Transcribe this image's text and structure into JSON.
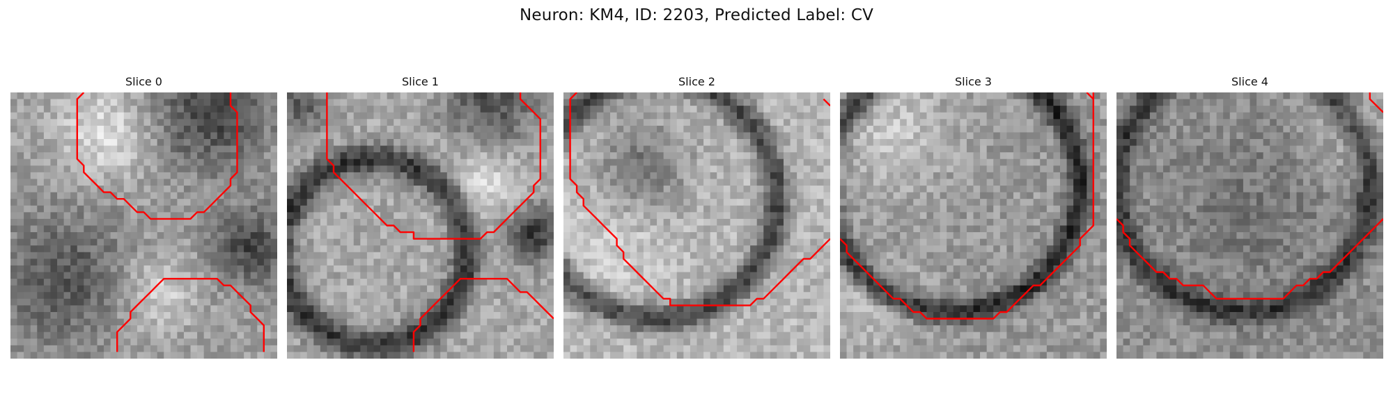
{
  "figure": {
    "title": "Neuron: KM4, ID: 2203, Predicted Label: CV"
  },
  "colors": {
    "background": "#ffffff",
    "contour": "#ff0000",
    "image_cmap": "grayscale"
  },
  "panels": [
    {
      "title": "Slice 0",
      "image_tone": "mottled gray texture, darker band across the middle, dark region at top-right",
      "contours": [
        [
          [
            11,
            0
          ],
          [
            10,
            1
          ],
          [
            10,
            10
          ],
          [
            11,
            11
          ],
          [
            11,
            12
          ],
          [
            12,
            13
          ],
          [
            13,
            14
          ],
          [
            14,
            15
          ],
          [
            15,
            15
          ],
          [
            16,
            16
          ],
          [
            17,
            16
          ],
          [
            18,
            17
          ],
          [
            19,
            18
          ],
          [
            20,
            18
          ],
          [
            21,
            19
          ],
          [
            22,
            19
          ],
          [
            23,
            19
          ],
          [
            24,
            19
          ],
          [
            25,
            19
          ],
          [
            26,
            19
          ],
          [
            27,
            19
          ],
          [
            28,
            18
          ],
          [
            29,
            18
          ],
          [
            30,
            17
          ],
          [
            31,
            16
          ],
          [
            32,
            15
          ],
          [
            33,
            14
          ],
          [
            33,
            13
          ],
          [
            34,
            12
          ],
          [
            34,
            3
          ],
          [
            33,
            2
          ],
          [
            33,
            0
          ]
        ],
        [
          [
            16,
            39
          ],
          [
            16,
            36
          ],
          [
            17,
            35
          ],
          [
            18,
            34
          ],
          [
            18,
            33
          ],
          [
            19,
            32
          ],
          [
            20,
            31
          ],
          [
            21,
            30
          ],
          [
            22,
            29
          ],
          [
            23,
            28
          ],
          [
            24,
            28
          ],
          [
            30,
            28
          ],
          [
            31,
            28
          ],
          [
            32,
            29
          ],
          [
            33,
            29
          ],
          [
            34,
            30
          ],
          [
            35,
            31
          ],
          [
            36,
            32
          ],
          [
            36,
            33
          ],
          [
            37,
            34
          ],
          [
            38,
            35
          ],
          [
            38,
            39
          ]
        ]
      ]
    },
    {
      "title": "Slice 1",
      "image_tone": "bright rounded cell body with dark membrane ring, dark blob at right edge",
      "contours": [
        [
          [
            6,
            0
          ],
          [
            6,
            10
          ],
          [
            7,
            11
          ],
          [
            7,
            12
          ],
          [
            8,
            13
          ],
          [
            9,
            14
          ],
          [
            10,
            15
          ],
          [
            11,
            16
          ],
          [
            12,
            17
          ],
          [
            13,
            18
          ],
          [
            14,
            19
          ],
          [
            15,
            20
          ],
          [
            16,
            20
          ],
          [
            17,
            21
          ],
          [
            18,
            21
          ],
          [
            19,
            21
          ],
          [
            19,
            22
          ],
          [
            20,
            22
          ],
          [
            21,
            22
          ],
          [
            22,
            22
          ],
          [
            23,
            22
          ],
          [
            24,
            22
          ],
          [
            25,
            22
          ],
          [
            26,
            22
          ],
          [
            27,
            22
          ],
          [
            28,
            22
          ],
          [
            29,
            22
          ],
          [
            30,
            21
          ],
          [
            31,
            21
          ],
          [
            32,
            20
          ],
          [
            33,
            19
          ],
          [
            34,
            18
          ],
          [
            35,
            17
          ],
          [
            36,
            16
          ],
          [
            37,
            15
          ],
          [
            37,
            14
          ],
          [
            38,
            13
          ],
          [
            38,
            4
          ],
          [
            37,
            3
          ],
          [
            36,
            2
          ],
          [
            35,
            1
          ],
          [
            35,
            0
          ]
        ],
        [
          [
            19,
            39
          ],
          [
            19,
            36
          ],
          [
            20,
            35
          ],
          [
            20,
            34
          ],
          [
            21,
            33
          ],
          [
            22,
            32
          ],
          [
            23,
            31
          ],
          [
            24,
            30
          ],
          [
            25,
            29
          ],
          [
            26,
            28
          ],
          [
            27,
            28
          ],
          [
            32,
            28
          ],
          [
            33,
            28
          ],
          [
            34,
            29
          ],
          [
            35,
            30
          ],
          [
            36,
            30
          ],
          [
            37,
            31
          ],
          [
            38,
            32
          ],
          [
            39,
            33
          ],
          [
            40,
            34
          ]
        ]
      ]
    },
    {
      "title": "Slice 2",
      "image_tone": "large pale cell body outlined by a dark membrane arc",
      "contours": [
        [
          [
            2,
            0
          ],
          [
            1,
            1
          ],
          [
            1,
            13
          ],
          [
            2,
            14
          ],
          [
            2,
            15
          ],
          [
            3,
            16
          ],
          [
            3,
            17
          ],
          [
            4,
            18
          ],
          [
            5,
            19
          ],
          [
            6,
            20
          ],
          [
            7,
            21
          ],
          [
            8,
            22
          ],
          [
            8,
            23
          ],
          [
            9,
            24
          ],
          [
            9,
            25
          ],
          [
            10,
            26
          ],
          [
            11,
            27
          ],
          [
            12,
            28
          ],
          [
            13,
            29
          ],
          [
            14,
            30
          ],
          [
            15,
            31
          ],
          [
            16,
            31
          ],
          [
            16,
            32
          ],
          [
            28,
            32
          ],
          [
            29,
            31
          ],
          [
            30,
            31
          ],
          [
            31,
            30
          ],
          [
            32,
            29
          ],
          [
            33,
            28
          ],
          [
            34,
            27
          ],
          [
            35,
            26
          ],
          [
            36,
            25
          ],
          [
            37,
            25
          ],
          [
            38,
            24
          ],
          [
            39,
            23
          ],
          [
            40,
            22
          ]
        ],
        [
          [
            39,
            1
          ],
          [
            40,
            2
          ]
        ]
      ]
    },
    {
      "title": "Slice 3",
      "image_tone": "textured cell body with dark membrane ring on right and bottom",
      "contours": [
        [
          [
            0,
            22
          ],
          [
            1,
            23
          ],
          [
            1,
            24
          ],
          [
            2,
            25
          ],
          [
            3,
            26
          ],
          [
            4,
            27
          ],
          [
            5,
            28
          ],
          [
            6,
            29
          ],
          [
            7,
            30
          ],
          [
            8,
            31
          ],
          [
            9,
            31
          ],
          [
            10,
            32
          ],
          [
            11,
            33
          ],
          [
            12,
            33
          ],
          [
            13,
            34
          ],
          [
            23,
            34
          ],
          [
            24,
            33
          ],
          [
            25,
            33
          ],
          [
            26,
            32
          ],
          [
            27,
            31
          ],
          [
            28,
            30
          ],
          [
            29,
            29
          ],
          [
            30,
            29
          ],
          [
            31,
            28
          ],
          [
            32,
            27
          ],
          [
            33,
            26
          ],
          [
            34,
            25
          ],
          [
            35,
            24
          ],
          [
            36,
            23
          ],
          [
            36,
            22
          ],
          [
            37,
            21
          ],
          [
            38,
            20
          ],
          [
            38,
            0
          ]
        ],
        [
          [
            38,
            1
          ],
          [
            37,
            0
          ]
        ]
      ]
    },
    {
      "title": "Slice 4",
      "image_tone": "mid-gray textured cell body with dark ring on lower right",
      "contours": [
        [
          [
            0,
            19
          ],
          [
            1,
            20
          ],
          [
            1,
            21
          ],
          [
            2,
            22
          ],
          [
            2,
            23
          ],
          [
            3,
            24
          ],
          [
            4,
            25
          ],
          [
            5,
            26
          ],
          [
            6,
            27
          ],
          [
            7,
            27
          ],
          [
            8,
            28
          ],
          [
            9,
            28
          ],
          [
            10,
            29
          ],
          [
            11,
            29
          ],
          [
            12,
            29
          ],
          [
            13,
            29
          ],
          [
            14,
            30
          ],
          [
            15,
            31
          ],
          [
            16,
            31
          ],
          [
            24,
            31
          ],
          [
            25,
            31
          ],
          [
            26,
            30
          ],
          [
            27,
            29
          ],
          [
            28,
            29
          ],
          [
            29,
            28
          ],
          [
            30,
            28
          ],
          [
            31,
            27
          ],
          [
            32,
            27
          ],
          [
            33,
            26
          ],
          [
            34,
            25
          ],
          [
            35,
            24
          ],
          [
            36,
            23
          ],
          [
            37,
            22
          ],
          [
            38,
            21
          ],
          [
            39,
            20
          ],
          [
            40,
            19
          ]
        ],
        [
          [
            38,
            0
          ],
          [
            38,
            1
          ],
          [
            39,
            2
          ],
          [
            40,
            3
          ]
        ]
      ]
    }
  ]
}
